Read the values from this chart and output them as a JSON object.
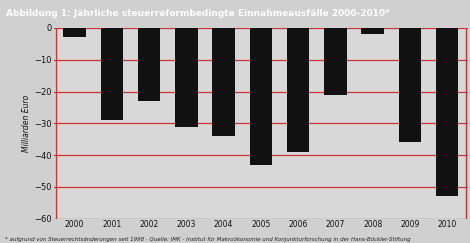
{
  "title": "Abbildung 1: Jährliche steuerreformbedingte Einnahmeausfälle 2000-2010*",
  "footnote": "* aufgrund von Steuerrechtsänderungen seit 1998 · Quelle: IMK - Institut für Makroökonomie und Konjunkturforschung in der Hans-Böckler-Stiftung",
  "ylabel": "Milliarden Euro",
  "years": [
    2000,
    2001,
    2002,
    2003,
    2004,
    2005,
    2006,
    2007,
    2008,
    2009,
    2010
  ],
  "values": [
    -3,
    -29,
    -23,
    -31,
    -34,
    -43,
    -39,
    -21,
    -2,
    -36,
    -53
  ],
  "bar_color": "#111111",
  "title_bg": "#cc1111",
  "title_fg": "#ffffff",
  "grid_color": "#cc3333",
  "bg_color": "#d0d0d0",
  "plot_bg": "#d8d8d8",
  "border_color": "#cc1111",
  "ylim": [
    -60,
    0
  ],
  "yticks": [
    0,
    -10,
    -20,
    -30,
    -40,
    -50,
    -60
  ]
}
